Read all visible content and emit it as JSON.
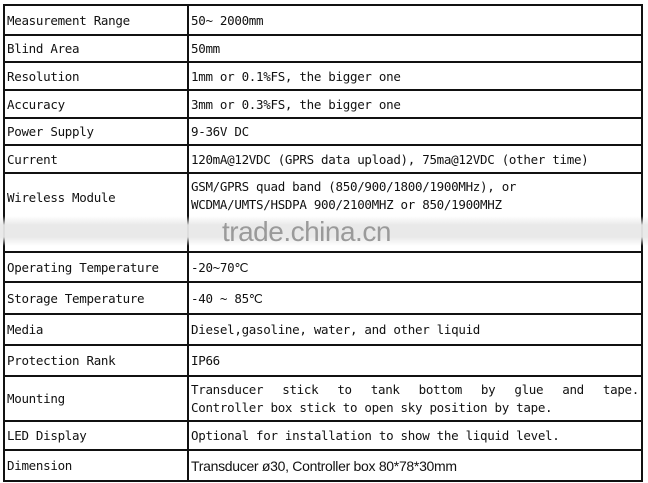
{
  "rows": [
    {
      "key": "Measurement Range",
      "value": "50~ 2000mm"
    },
    {
      "key": "Blind Area",
      "value": "50mm"
    },
    {
      "key": "Resolution",
      "value": "1mm or 0.1%FS, the bigger one"
    },
    {
      "key": "Accuracy",
      "value": "3mm or 0.3%FS, the bigger one"
    },
    {
      "key": "Power Supply",
      "value": "9-36V DC"
    },
    {
      "key": "Current",
      "value": "120mA@12VDC (GPRS data upload), 75ma@12VDC (other time)"
    },
    {
      "key": "Wireless Module",
      "value": "GSM/GPRS quad band (850/900/1800/1900MHz), or",
      "value2": "WCDMA/UMTS/HSDPA 900/2100MHZ or 850/1900MHZ"
    },
    {
      "key": "Operating Temperature",
      "value": "-20~70℃"
    },
    {
      "key": "Storage Temperature",
      "value": "-40 ~ 85℃"
    },
    {
      "key": "Media",
      "value": "Diesel,gasoline, water, and other liquid"
    },
    {
      "key": "Protection Rank",
      "value": "IP66"
    },
    {
      "key": "Mounting",
      "value": "Transducer stick to tank bottom by glue and tape.",
      "value2": "Controller box stick to open sky position by tape."
    },
    {
      "key": "LED Display",
      "value": "Optional for installation to show the liquid level."
    },
    {
      "key": "Dimension",
      "value": "Transducer ø30, Controller box 80*78*30mm"
    }
  ],
  "watermark": "trade.china.cn"
}
